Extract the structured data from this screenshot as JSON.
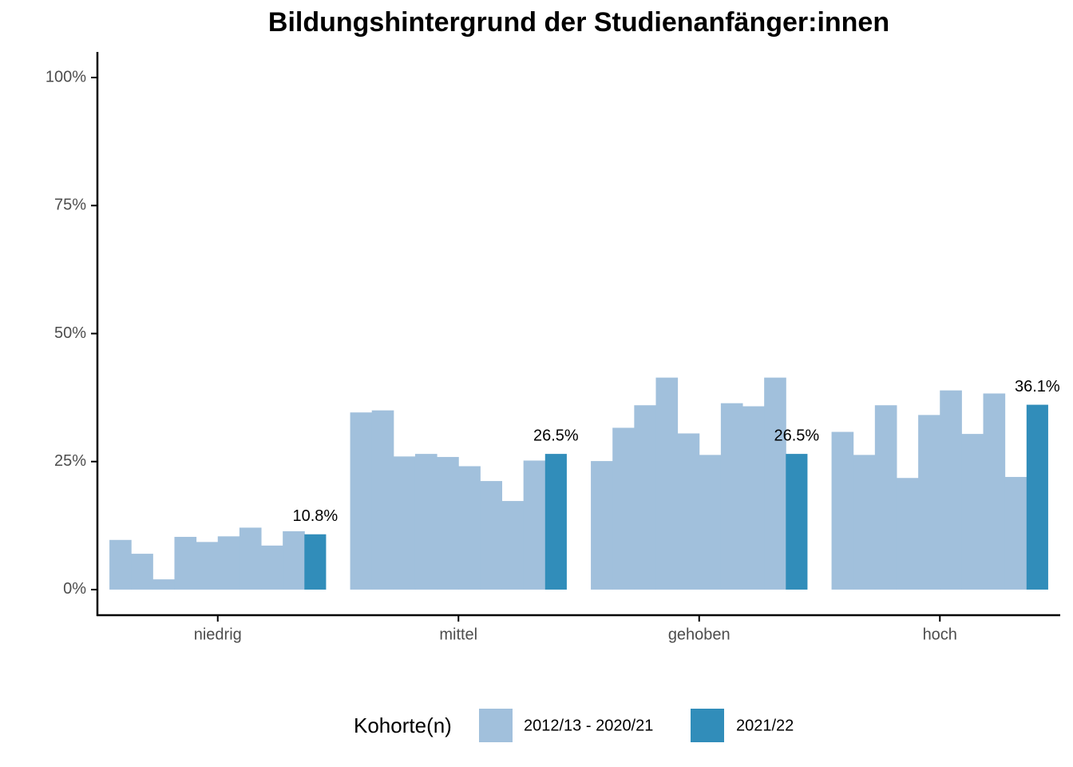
{
  "chart_data": {
    "type": "bar",
    "title": "Bildungshintergrund der Studienanfänger:innen",
    "categories": [
      "niedrig",
      "mittel",
      "gehoben",
      "hoch"
    ],
    "legend_title": "Kohorte(n)",
    "legend_position": "bottom",
    "series": [
      {
        "name": "2012/13 - 2020/21",
        "color": "#a1c0dc",
        "values": [
          [
            9.7,
            7.0,
            2.0,
            10.3,
            9.3,
            10.4,
            12.1,
            8.6,
            11.4
          ],
          [
            34.6,
            35.0,
            26.0,
            26.5,
            25.9,
            24.1,
            21.2,
            17.3,
            25.2
          ],
          [
            25.1,
            31.6,
            36.0,
            41.4,
            30.5,
            26.3,
            36.4,
            35.8,
            41.4
          ],
          [
            30.8,
            26.3,
            36.0,
            21.8,
            34.1,
            38.9,
            30.4,
            38.3,
            22.0
          ]
        ]
      },
      {
        "name": "2021/22",
        "color": "#318dba",
        "values": [
          10.8,
          26.5,
          26.5,
          36.1
        ],
        "value_labels": [
          "10.8%",
          "26.5%",
          "26.5%",
          "36.1%"
        ]
      }
    ],
    "ylim": [
      -5,
      105
    ],
    "yticks": [
      {
        "value": 0,
        "label": "0%"
      },
      {
        "value": 25,
        "label": "25%"
      },
      {
        "value": 50,
        "label": "50%"
      },
      {
        "value": 75,
        "label": "75%"
      },
      {
        "value": 100,
        "label": "100%"
      }
    ],
    "grid": false
  }
}
